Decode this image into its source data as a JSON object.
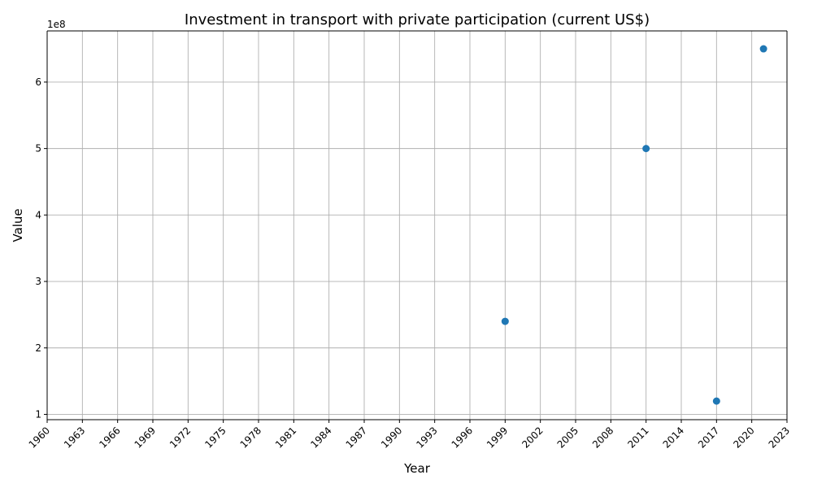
{
  "chart_data": {
    "type": "scatter",
    "title": "Investment in transport with private participation (current US$)",
    "xlabel": "Year",
    "ylabel": "Value",
    "y_offset_label": "1e8",
    "x_ticks": [
      "1960",
      "1963",
      "1966",
      "1969",
      "1972",
      "1975",
      "1978",
      "1981",
      "1984",
      "1987",
      "1990",
      "1993",
      "1996",
      "1999",
      "2002",
      "2005",
      "2008",
      "2011",
      "2014",
      "2017",
      "2020",
      "2023"
    ],
    "y_ticks": [
      1,
      2,
      3,
      4,
      5,
      6
    ],
    "y_tick_labels": [
      "1",
      "2",
      "3",
      "4",
      "5",
      "6"
    ],
    "points": [
      {
        "x": 1999,
        "y": 240000000
      },
      {
        "x": 2011,
        "y": 500000000
      },
      {
        "x": 2017,
        "y": 120000000
      },
      {
        "x": 2021,
        "y": 650000000
      }
    ],
    "grid": true,
    "marker_color": "#1f77b4"
  }
}
